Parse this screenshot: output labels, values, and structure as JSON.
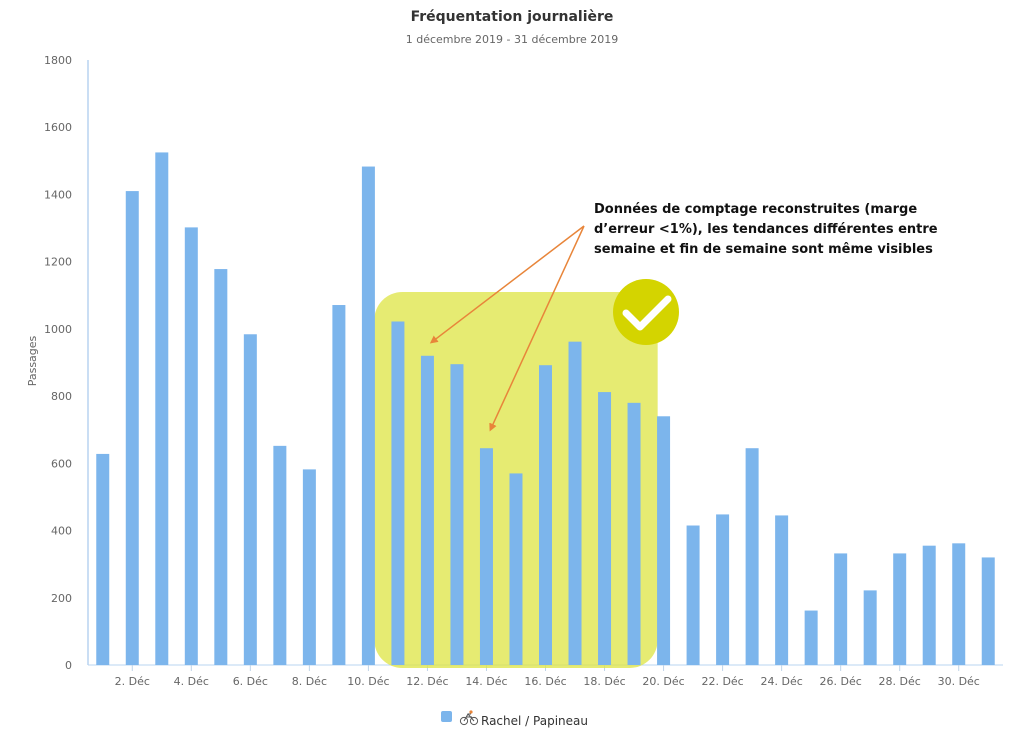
{
  "chart_data": {
    "type": "bar",
    "title": "Fréquentation journalière",
    "subtitle": "1 décembre 2019 - 31 décembre 2019",
    "ylabel": "Passages",
    "xlabel": "",
    "ylim": [
      0,
      1800
    ],
    "y_ticks": [
      0,
      200,
      400,
      600,
      800,
      1000,
      1200,
      1400,
      1600,
      1800
    ],
    "x_tick_labels": [
      {
        "day": 2,
        "label": "2. Déc"
      },
      {
        "day": 4,
        "label": "4. Déc"
      },
      {
        "day": 6,
        "label": "6. Déc"
      },
      {
        "day": 8,
        "label": "8. Déc"
      },
      {
        "day": 10,
        "label": "10. Déc"
      },
      {
        "day": 12,
        "label": "12. Déc"
      },
      {
        "day": 14,
        "label": "14. Déc"
      },
      {
        "day": 16,
        "label": "16. Déc"
      },
      {
        "day": 18,
        "label": "18. Déc"
      },
      {
        "day": 20,
        "label": "20. Déc"
      },
      {
        "day": 22,
        "label": "22. Déc"
      },
      {
        "day": 24,
        "label": "24. Déc"
      },
      {
        "day": 26,
        "label": "26. Déc"
      },
      {
        "day": 28,
        "label": "28. Déc"
      },
      {
        "day": 30,
        "label": "30. Déc"
      }
    ],
    "categories": [
      1,
      2,
      3,
      4,
      5,
      6,
      7,
      8,
      9,
      10,
      11,
      12,
      13,
      14,
      15,
      16,
      17,
      18,
      19,
      20,
      21,
      22,
      23,
      24,
      25,
      26,
      27,
      28,
      29,
      30,
      31
    ],
    "series": [
      {
        "name": "Rachel / Papineau",
        "color": "#7cb5ec",
        "values": [
          628,
          1410,
          1525,
          1302,
          1178,
          984,
          652,
          582,
          1071,
          1483,
          1022,
          920,
          895,
          645,
          570,
          892,
          962,
          812,
          780,
          740,
          415,
          448,
          645,
          445,
          162,
          332,
          222,
          332,
          355,
          362,
          320
        ]
      }
    ],
    "grid": false,
    "legend": "bottom-center",
    "highlight": {
      "from_day": 11,
      "to_day": 19,
      "color": "#dfe54a",
      "check_color": "#d4d400",
      "icon": "check-icon"
    },
    "annotation": {
      "lines": [
        "Données de comptage reconstruites (marge",
        "d’erreur <1%), les tendances différentes entre",
        "semaine et fin de semaine sont même visibles"
      ],
      "arrow_color": "#e8853a",
      "arrow_targets": [
        {
          "day": 12,
          "value": 960
        },
        {
          "day": 14,
          "value": 700
        }
      ]
    },
    "legend_icon": "bicycle-icon"
  }
}
